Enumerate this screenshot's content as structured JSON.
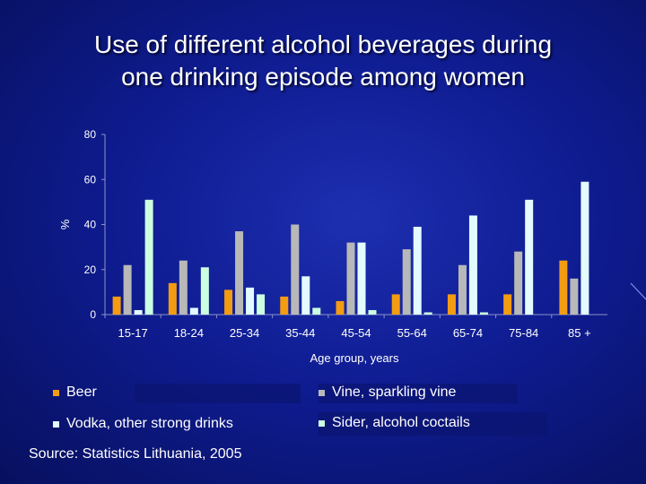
{
  "title_lines": [
    "Use of different alcohol beverages during",
    "one drinking episode among women"
  ],
  "chart_data": {
    "type": "bar",
    "categories": [
      "15-17",
      "18-24",
      "25-34",
      "35-44",
      "45-54",
      "55-64",
      "65-74",
      "75-84",
      "85 +"
    ],
    "series": [
      {
        "name": "Beer",
        "color": "#f39c12",
        "values": [
          8,
          14,
          11,
          8,
          6,
          9,
          9,
          9,
          24
        ]
      },
      {
        "name": "Vine, sparkling vine",
        "color": "#b8b8b8",
        "values": [
          22,
          24,
          37,
          40,
          32,
          29,
          22,
          28,
          16
        ]
      },
      {
        "name": "Vodka, other strong drinks",
        "color": "#e3fbff",
        "values": [
          2,
          3,
          12,
          17,
          32,
          39,
          44,
          51,
          59
        ]
      },
      {
        "name": "Sider, alcohol coctails",
        "color": "#ccffe0",
        "values": [
          51,
          21,
          9,
          3,
          2,
          1,
          1,
          0,
          0
        ]
      }
    ],
    "ylabel": "%",
    "xlabel": "Age group, years",
    "ylim": [
      0,
      80
    ],
    "yticks": [
      0,
      20,
      40,
      60,
      80
    ]
  },
  "legend": {
    "beer": "Beer",
    "vine": "Vine, sparkling vine",
    "vodka": "Vodka, other strong drinks",
    "sider": "Sider, alcohol coctails"
  },
  "source": "Source: Statistics Lithuania, 2005"
}
